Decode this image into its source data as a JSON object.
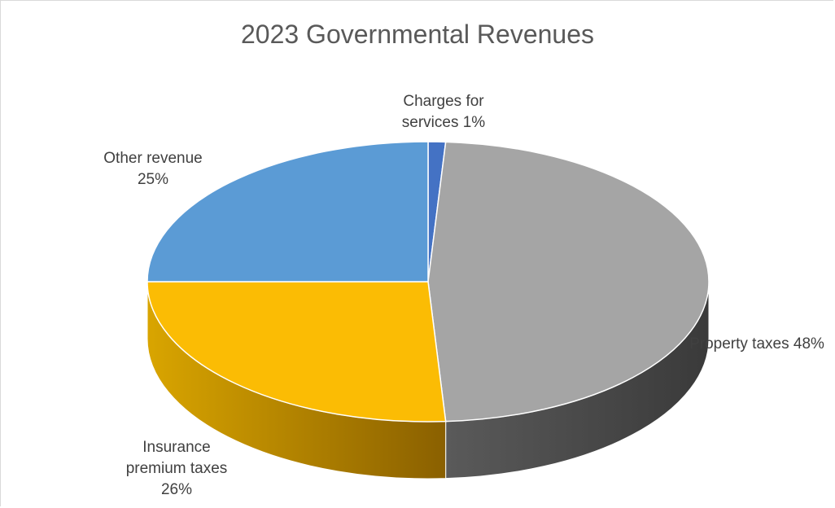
{
  "chart_data": {
    "type": "pie",
    "title": "2023 Governmental Revenues",
    "three_d": true,
    "slices": [
      {
        "label_lines": [
          "Charges for",
          "services 1%"
        ],
        "name": "Charges for services",
        "value": 1,
        "color": "#4472c4",
        "side_color_dark": "#1f3a6b",
        "side_color_light": "#3a64ad"
      },
      {
        "label_lines": [
          "Property taxes 48%"
        ],
        "name": "Property taxes",
        "value": 48,
        "color": "#a5a5a5",
        "side_color_dark": "#3a3a3a",
        "side_color_light": "#5a5a5a"
      },
      {
        "label_lines": [
          "Insurance",
          "premium taxes",
          "26%"
        ],
        "name": "Insurance premium taxes",
        "value": 26,
        "color": "#fbbc04",
        "side_color_dark": "#8a6000",
        "side_color_light": "#d9a500"
      },
      {
        "label_lines": [
          "Other revenue",
          "25%"
        ],
        "name": "Other revenue",
        "value": 25,
        "color": "#5b9bd5",
        "side_color_dark": "#2e5f8a",
        "side_color_light": "#4a86bd"
      }
    ],
    "legend": "none"
  }
}
